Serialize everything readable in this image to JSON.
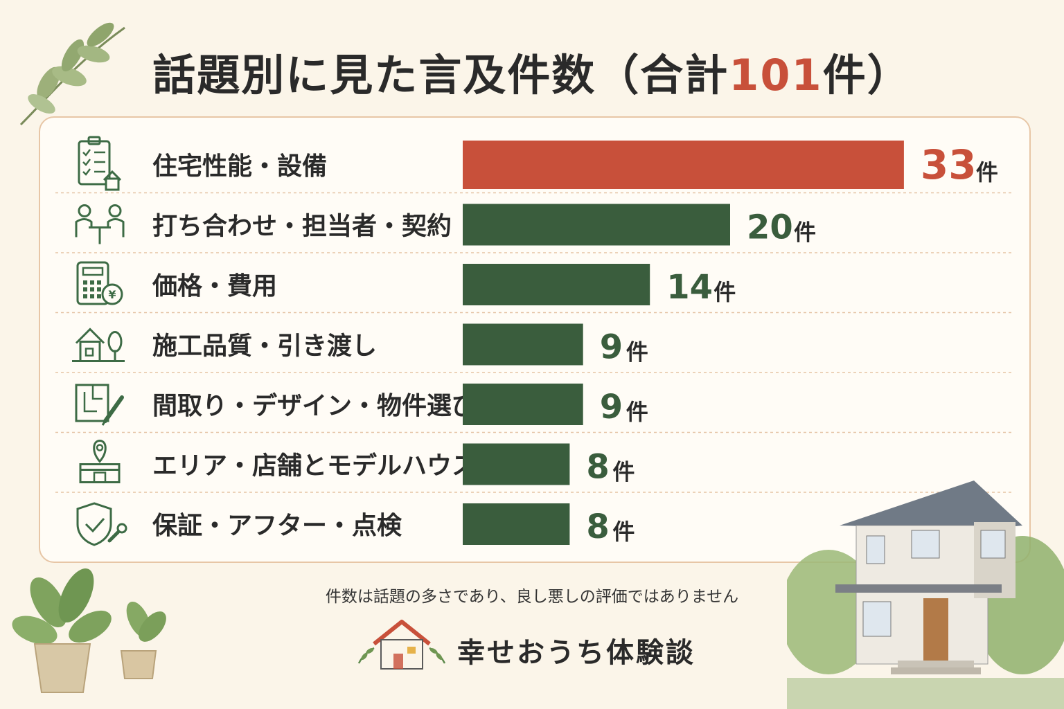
{
  "title": {
    "main": "話題別に見た言及件数（合計",
    "total": "101",
    "suffix": "件）"
  },
  "chart_data": {
    "type": "bar",
    "orientation": "horizontal",
    "unit": "件",
    "categories": [
      "住宅性能・設備",
      "打ち合わせ・担当者・契約",
      "価格・費用",
      "施工品質・引き渡し",
      "間取り・デザイン・物件選び",
      "エリア・店舗とモデルハウス",
      "保証・アフター・点検"
    ],
    "values": [
      33,
      20,
      14,
      9,
      9,
      8,
      8
    ],
    "icons": [
      "checklist-house-icon",
      "meeting-people-icon",
      "calculator-yen-icon",
      "house-tree-icon",
      "floorplan-pencil-icon",
      "map-pin-store-icon",
      "shield-wrench-icon"
    ],
    "highlight_index": 0,
    "colors": {
      "highlight": "#c8503a",
      "bar": "#3a5d3d",
      "icon": "#3d6b45"
    }
  },
  "footnote": "件数は話題の多さであり、良し悪しの評価ではありません",
  "brand": {
    "name": "幸せおうち体験談",
    "logo_icon": "house-logo-icon"
  },
  "decorations": [
    "leaf-branch-icon",
    "potted-plant-icon",
    "house-illustration-icon"
  ]
}
